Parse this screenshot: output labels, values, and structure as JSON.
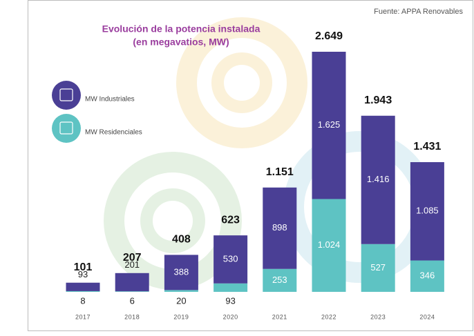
{
  "chart_data": {
    "type": "stacked-bar",
    "title": "Evolución de la potencia instalada",
    "subtitle": "(en megavatios, MW)",
    "source": "Fuente: APPA Renovables",
    "categories": [
      "2017",
      "2018",
      "2019",
      "2020",
      "2021",
      "2022",
      "2023",
      "2024"
    ],
    "series": [
      {
        "name": "MW Residenciales",
        "color": "#5ec3c3",
        "values": [
          8,
          6,
          20,
          93,
          253,
          1024,
          527,
          346
        ],
        "value_labels": [
          "8",
          "6",
          "20",
          "93",
          "253",
          "1.024",
          "527",
          "346"
        ]
      },
      {
        "name": "MW Industriales",
        "color": "#4a3f95",
        "values": [
          93,
          201,
          388,
          530,
          898,
          1625,
          1416,
          1085
        ],
        "value_labels": [
          "93",
          "201",
          "388",
          "530",
          "898",
          "1.625",
          "1.416",
          "1.085"
        ]
      }
    ],
    "totals": {
      "values": [
        101,
        207,
        408,
        623,
        1151,
        2649,
        1943,
        1431
      ],
      "value_labels": [
        "101",
        "207",
        "408",
        "623",
        "1.151",
        "2.649",
        "1.943",
        "1.431"
      ]
    }
  }
}
